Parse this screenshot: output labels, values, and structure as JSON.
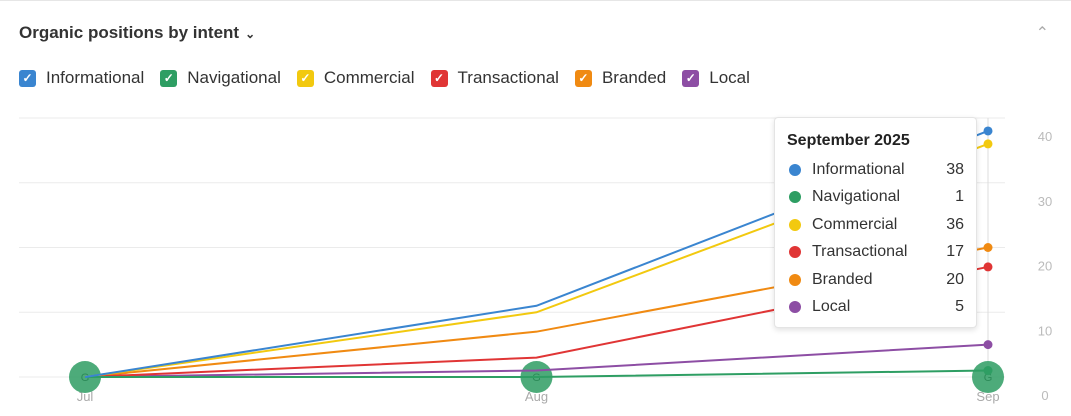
{
  "header": {
    "title": "Organic positions by intent",
    "chevron": "⌄",
    "collapse": "⌃"
  },
  "chart_data": {
    "type": "line",
    "x": [
      "Jul",
      "Aug",
      "Sep"
    ],
    "ylim": [
      0,
      40
    ],
    "yticks": [
      "0",
      "10",
      "20",
      "30",
      "40"
    ],
    "y_axis": "right",
    "grid": true,
    "series": [
      {
        "name": "Informational",
        "color": "#3a85d0",
        "values": [
          0,
          11,
          38
        ]
      },
      {
        "name": "Navigational",
        "color": "#2e9e63",
        "values": [
          0,
          0,
          1
        ]
      },
      {
        "name": "Commercial",
        "color": "#f2c90f",
        "values": [
          0,
          10,
          36
        ]
      },
      {
        "name": "Transactional",
        "color": "#e03535",
        "values": [
          0,
          3,
          17
        ]
      },
      {
        "name": "Branded",
        "color": "#f08a12",
        "values": [
          0,
          7,
          20
        ]
      },
      {
        "name": "Local",
        "color": "#8d4ea4",
        "values": [
          0,
          1,
          5
        ]
      }
    ],
    "annotations": [
      {
        "x": "Jul",
        "label": "G"
      },
      {
        "x": "Aug",
        "label": "G"
      },
      {
        "x": "Sep",
        "label": "G"
      }
    ],
    "tooltip": {
      "title": "September 2025",
      "x": "Sep"
    }
  }
}
